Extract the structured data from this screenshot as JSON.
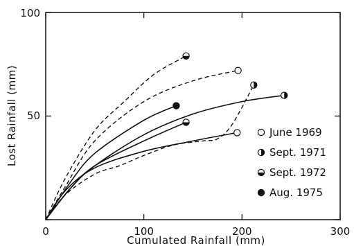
{
  "chart_data": {
    "type": "line",
    "title": "",
    "xlabel": "Cumulated  Rainfall  (mm)",
    "ylabel": "Lost  Rainfall  (mm)",
    "xlim": [
      0,
      300
    ],
    "ylim": [
      0,
      100
    ],
    "x_ticks": [
      "0",
      "100",
      "200",
      "300"
    ],
    "y_ticks": [
      "50",
      "100"
    ],
    "grid": false,
    "legend_position": "right",
    "legend": [
      {
        "label": "June 1969",
        "marker": "open"
      },
      {
        "label": "Sept. 1971",
        "marker": "half-right"
      },
      {
        "label": "Sept. 1972",
        "marker": "half-bottom"
      },
      {
        "label": "Aug. 1975",
        "marker": "filled"
      }
    ],
    "series": [
      {
        "event": "June 1969",
        "style": "solid",
        "marker": "open",
        "points": [
          [
            0,
            0
          ],
          [
            20,
            14
          ],
          [
            50,
            25
          ],
          [
            100,
            33
          ],
          [
            150,
            38
          ],
          [
            195,
            42
          ]
        ]
      },
      {
        "event": "June 1969",
        "style": "dashed",
        "marker": "open",
        "points": [
          [
            0,
            0
          ],
          [
            20,
            16
          ],
          [
            50,
            38
          ],
          [
            100,
            57
          ],
          [
            150,
            67
          ],
          [
            196,
            72
          ]
        ]
      },
      {
        "event": "Sept. 1971",
        "style": "solid",
        "marker": "half-right",
        "points": [
          [
            0,
            0
          ],
          [
            25,
            15
          ],
          [
            50,
            26
          ],
          [
            100,
            41
          ],
          [
            150,
            51
          ],
          [
            200,
            57
          ],
          [
            243,
            60
          ]
        ]
      },
      {
        "event": "Sept. 1971",
        "style": "dashed",
        "marker": "half-right",
        "points": [
          [
            0,
            0
          ],
          [
            20,
            12
          ],
          [
            50,
            22
          ],
          [
            75,
            26
          ],
          [
            100,
            31
          ],
          [
            130,
            36
          ],
          [
            160,
            38
          ],
          [
            175,
            39
          ],
          [
            190,
            46
          ],
          [
            212,
            65
          ]
        ]
      },
      {
        "event": "Sept. 1972",
        "style": "solid",
        "marker": "half-bottom",
        "points": [
          [
            0,
            0
          ],
          [
            25,
            15
          ],
          [
            50,
            26
          ],
          [
            100,
            38
          ],
          [
            143,
            47
          ]
        ]
      },
      {
        "event": "Sept. 1972",
        "style": "dashed",
        "marker": "half-bottom",
        "points": [
          [
            0,
            0
          ],
          [
            20,
            20
          ],
          [
            50,
            43
          ],
          [
            80,
            57
          ],
          [
            110,
            70
          ],
          [
            143,
            79
          ]
        ]
      },
      {
        "event": "Aug. 1975",
        "style": "solid",
        "marker": "filled",
        "points": [
          [
            0,
            0
          ],
          [
            25,
            18
          ],
          [
            50,
            32
          ],
          [
            100,
            48
          ],
          [
            133,
            55
          ]
        ]
      }
    ]
  }
}
